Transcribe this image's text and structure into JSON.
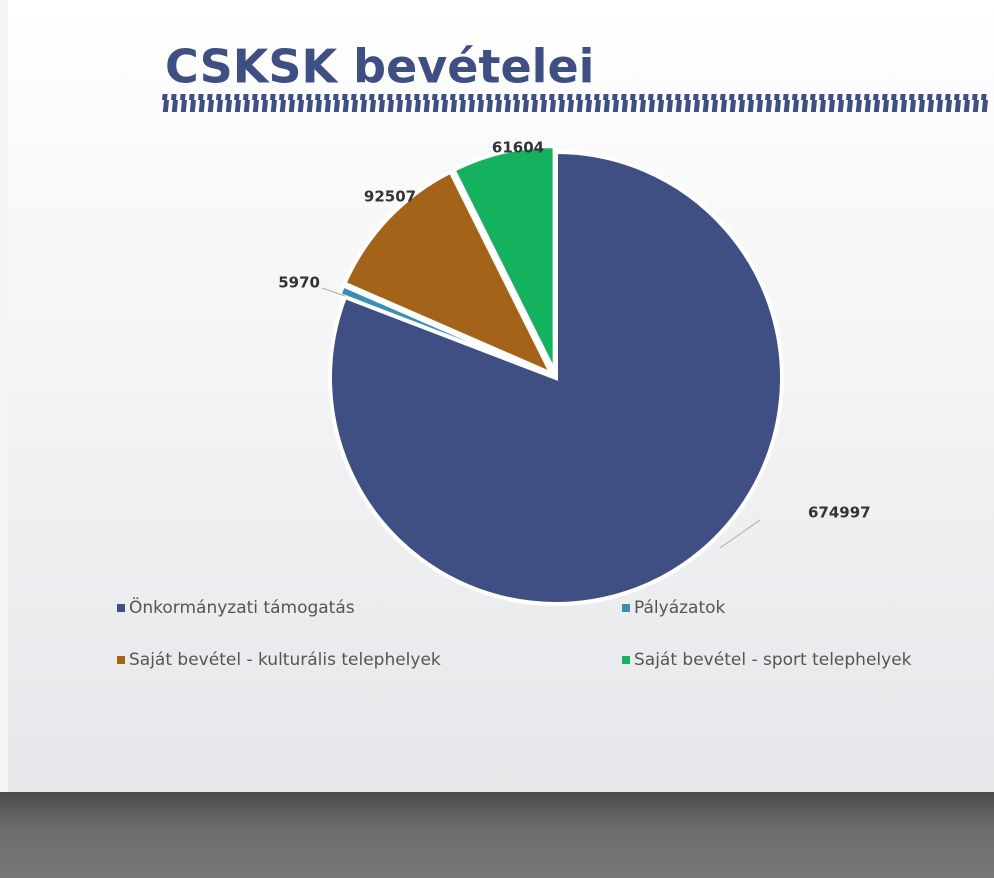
{
  "chart_data": {
    "type": "pie",
    "title": "CSKSK bevételei",
    "categories": [
      "Önkormányzati támogatás",
      "Pályázatok",
      "Saját bevétel - kulturális telephelyek",
      "Saját bevétel - sport telephelyek"
    ],
    "values": [
      674997,
      5970,
      92507,
      61604
    ],
    "colors": [
      "#3f4f84",
      "#3a8fb5",
      "#a5631a",
      "#14b25f"
    ]
  }
}
